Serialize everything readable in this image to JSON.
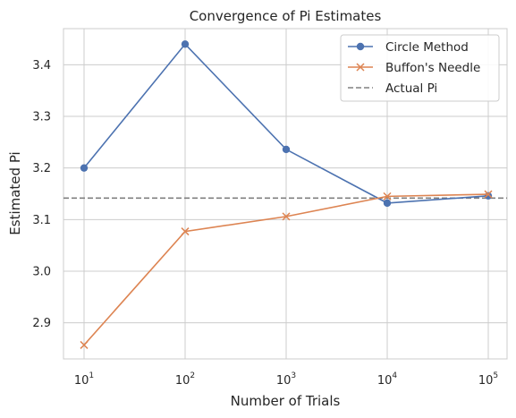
{
  "chart_data": {
    "type": "line",
    "title": "Convergence of Pi Estimates",
    "xlabel": "Number of Trials",
    "ylabel": "Estimated Pi",
    "x_scale": "log",
    "x": [
      10,
      100,
      1000,
      10000,
      100000
    ],
    "x_tick_labels": [
      {
        "base": "10",
        "exp": "1"
      },
      {
        "base": "10",
        "exp": "2"
      },
      {
        "base": "10",
        "exp": "3"
      },
      {
        "base": "10",
        "exp": "4"
      },
      {
        "base": "10",
        "exp": "5"
      }
    ],
    "y_ticks": [
      "2.9",
      "3.0",
      "3.1",
      "3.2",
      "3.3",
      "3.4"
    ],
    "y_tick_values": [
      2.9,
      3.0,
      3.1,
      3.2,
      3.3,
      3.4
    ],
    "xlim": [
      10,
      100000
    ],
    "ylim": [
      2.83,
      3.47
    ],
    "grid": true,
    "legend_position": "top-right",
    "series": [
      {
        "name": "Circle Method",
        "color": "#4c72b0",
        "marker": "circle",
        "values": [
          3.2,
          3.44,
          3.236,
          3.132,
          3.146
        ]
      },
      {
        "name": "Buffon's Needle",
        "color": "#dd8452",
        "marker": "x",
        "values": [
          2.857,
          3.077,
          3.106,
          3.145,
          3.149
        ]
      }
    ],
    "reference_line": {
      "name": "Actual Pi",
      "value": 3.14159,
      "color": "#808080",
      "style": "dashed"
    }
  }
}
